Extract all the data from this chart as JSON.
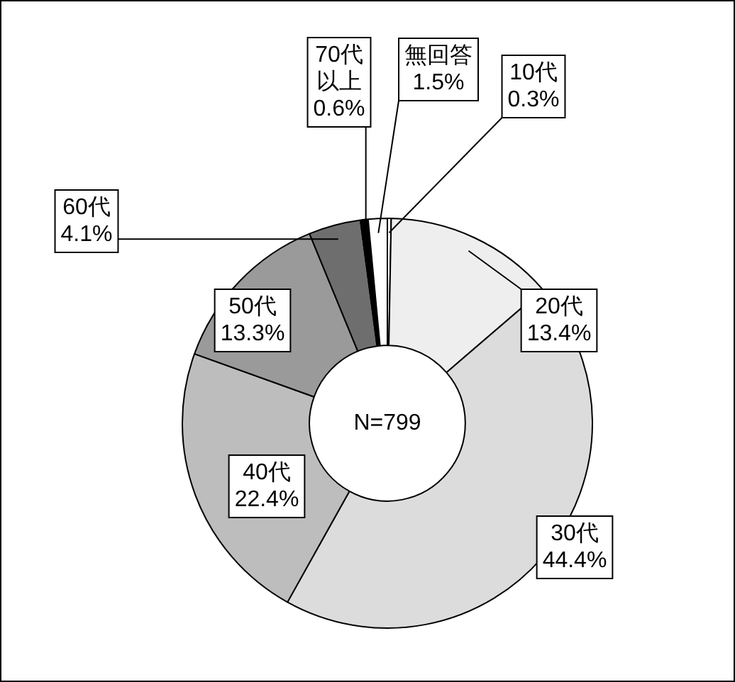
{
  "chart_data": {
    "type": "donut",
    "categories": [
      "10代",
      "20代",
      "30代",
      "40代",
      "50代",
      "60代",
      "70代以上",
      "無回答"
    ],
    "values": [
      0.3,
      13.4,
      44.4,
      22.4,
      13.3,
      4.1,
      0.6,
      1.5
    ],
    "colors": [
      "#ffffff",
      "#eeeeee",
      "#dcdcdc",
      "#bdbdbd",
      "#9a9a9a",
      "#6e6e6e",
      "#000000",
      "#ffffff"
    ],
    "value_labels": [
      "0.3%",
      "13.4%",
      "44.4%",
      "22.4%",
      "13.3%",
      "4.1%",
      "0.6%",
      "1.5%"
    ],
    "legend": false,
    "annotations": [
      "N=799"
    ]
  }
}
